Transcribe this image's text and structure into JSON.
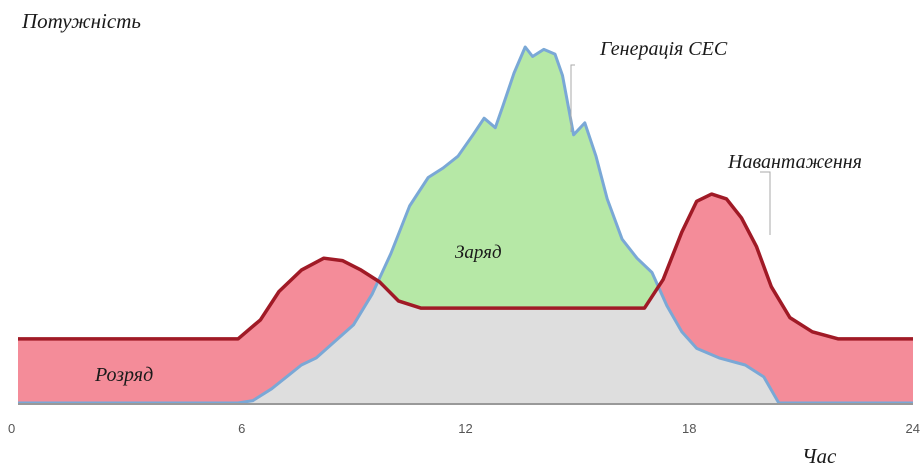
{
  "chart_data": {
    "type": "area",
    "ylabel": "Потужність",
    "xlabel": "Час",
    "xlim": [
      0,
      24
    ],
    "x_ticks": [
      "0",
      "6",
      "12",
      "18",
      "24"
    ],
    "y_ticks": [],
    "grid": false,
    "legend": "none",
    "series": [
      {
        "name": "Генерація СЕС",
        "color": "#7aa8d6",
        "x": [
          0,
          5.9,
          6.3,
          6.8,
          7.2,
          7.6,
          8.0,
          8.5,
          9.0,
          9.5,
          10.0,
          10.5,
          11.0,
          11.4,
          11.8,
          12.2,
          12.5,
          12.8,
          13.0,
          13.3,
          13.6,
          13.8,
          14.1,
          14.4,
          14.6,
          14.9,
          15.2,
          15.5,
          15.8,
          16.2,
          16.6,
          17.0,
          17.4,
          17.8,
          18.2,
          18.8,
          19.5,
          20.0,
          20.4,
          24
        ],
        "values": [
          0,
          0,
          0.1,
          0.6,
          1.1,
          1.6,
          1.9,
          2.6,
          3.3,
          4.6,
          6.3,
          8.3,
          9.5,
          9.9,
          10.4,
          11.3,
          12.0,
          11.6,
          12.5,
          13.9,
          15.0,
          14.6,
          14.9,
          14.7,
          13.8,
          11.3,
          11.8,
          10.4,
          8.6,
          6.9,
          6.1,
          5.5,
          4.1,
          3.0,
          2.3,
          1.9,
          1.6,
          1.1,
          0.0,
          0
        ]
      },
      {
        "name": "Навантаження",
        "color": "#a01a26",
        "x": [
          0,
          5.9,
          6.5,
          7.0,
          7.6,
          8.2,
          8.7,
          9.2,
          9.7,
          10.2,
          10.8,
          11.5,
          16.8,
          17.3,
          17.8,
          18.2,
          18.6,
          19.0,
          19.4,
          19.8,
          20.2,
          20.7,
          21.3,
          22.0,
          24
        ],
        "values": [
          2.7,
          2.7,
          3.5,
          4.7,
          5.6,
          6.1,
          6.0,
          5.6,
          5.1,
          4.3,
          4.0,
          4.0,
          4.0,
          5.2,
          7.2,
          8.5,
          8.8,
          8.6,
          7.8,
          6.6,
          4.9,
          3.6,
          3.0,
          2.7,
          2.7
        ]
      }
    ],
    "annotations": [
      "Генерація СЕС",
      "Навантаження",
      "Заряд",
      "Розряд"
    ],
    "area_labels": {
      "charge": "Заряд",
      "discharge": "Розряд"
    },
    "colors": {
      "pv_fill": "#dedede",
      "charge_fill": "#b6e8a6",
      "discharge_fill": "#f48c99",
      "axis": "#999999"
    }
  }
}
